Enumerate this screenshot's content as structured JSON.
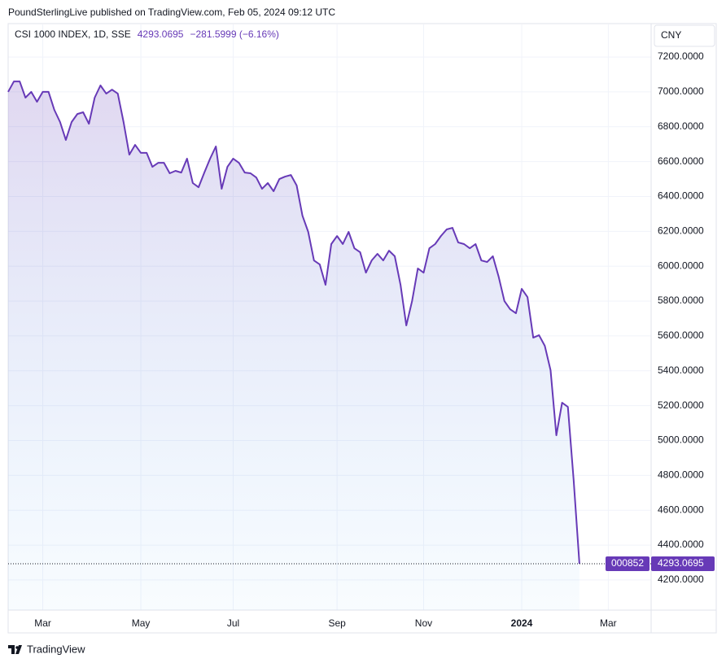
{
  "header": "PoundSterlingLive published on TradingView.com, Feb 05, 2024 09:12 UTC",
  "chart_data": {
    "type": "line",
    "change": "−281.5999 (−6.16%)",
    "currency": "CNY",
    "symbol": "000852",
    "series": [
      {
        "name": "CSI 1000 INDEX, 1D, SSE",
        "color": "#673ab7",
        "values": [
          7000,
          7060,
          7060,
          6967,
          7000,
          6943,
          7000,
          7000,
          6897,
          6827,
          6724,
          6827,
          6873,
          6883,
          6817,
          6967,
          7037,
          6990,
          7013,
          6990,
          6827,
          6640,
          6696,
          6650,
          6650,
          6570,
          6593,
          6593,
          6533,
          6547,
          6537,
          6617,
          6477,
          6453,
          6537,
          6617,
          6687,
          6444,
          6570,
          6617,
          6593,
          6537,
          6533,
          6509,
          6444,
          6477,
          6430,
          6500,
          6514,
          6523,
          6463,
          6290,
          6197,
          6033,
          6010,
          5893,
          6127,
          6173,
          6127,
          6197,
          6103,
          6080,
          5963,
          6033,
          6071,
          6033,
          6089,
          6057,
          5893,
          5660,
          5800,
          5987,
          5963,
          6103,
          6127,
          6173,
          6211,
          6220,
          6136,
          6127,
          6103,
          6127,
          6033,
          6024,
          6057,
          5940,
          5800,
          5753,
          5730,
          5870,
          5823,
          5590,
          5604,
          5543,
          5403,
          5030,
          5217,
          5193,
          4773,
          4293.0695,
          null,
          null,
          null,
          null,
          null,
          null
        ]
      }
    ],
    "categories": [
      null,
      null,
      null,
      null,
      null,
      null,
      "Mar",
      null,
      null,
      null,
      null,
      null,
      null,
      null,
      null,
      null,
      null,
      null,
      null,
      null,
      null,
      null,
      null,
      "May",
      null,
      null,
      null,
      null,
      null,
      null,
      null,
      null,
      null,
      null,
      null,
      null,
      null,
      null,
      null,
      "Jul",
      null,
      null,
      null,
      null,
      null,
      null,
      null,
      null,
      null,
      null,
      null,
      null,
      null,
      null,
      null,
      null,
      null,
      "Sep",
      null,
      null,
      null,
      null,
      null,
      null,
      null,
      null,
      null,
      null,
      null,
      null,
      null,
      null,
      "Nov",
      null,
      null,
      null,
      null,
      null,
      null,
      null,
      null,
      null,
      null,
      null,
      null,
      null,
      null,
      null,
      null,
      "2024",
      null,
      null,
      null,
      null,
      null,
      null,
      null,
      null,
      null,
      null,
      null,
      null,
      null,
      null,
      "Mar",
      null
    ],
    "ylim": [
      4027,
      7387
    ],
    "yticks": [
      {
        "value": 4200,
        "label": "4200.0000"
      },
      {
        "value": 4400,
        "label": "4400.0000"
      },
      {
        "value": 4600,
        "label": "4600.0000"
      },
      {
        "value": 4800,
        "label": "4800.0000"
      },
      {
        "value": 5000,
        "label": "5000.0000"
      },
      {
        "value": 5200,
        "label": "5200.0000"
      },
      {
        "value": 5400,
        "label": "5400.0000"
      },
      {
        "value": 5600,
        "label": "5600.0000"
      },
      {
        "value": 5800,
        "label": "5800.0000"
      },
      {
        "value": 6000,
        "label": "6000.0000"
      },
      {
        "value": 6200,
        "label": "6200.0000"
      },
      {
        "value": 6400,
        "label": "6400.0000"
      },
      {
        "value": 6600,
        "label": "6600.0000"
      },
      {
        "value": 6800,
        "label": "6800.0000"
      },
      {
        "value": 7000,
        "label": "7000.0000"
      },
      {
        "value": 7200,
        "label": "7200.0000"
      }
    ],
    "grid": true
  },
  "footer": "TradingView"
}
